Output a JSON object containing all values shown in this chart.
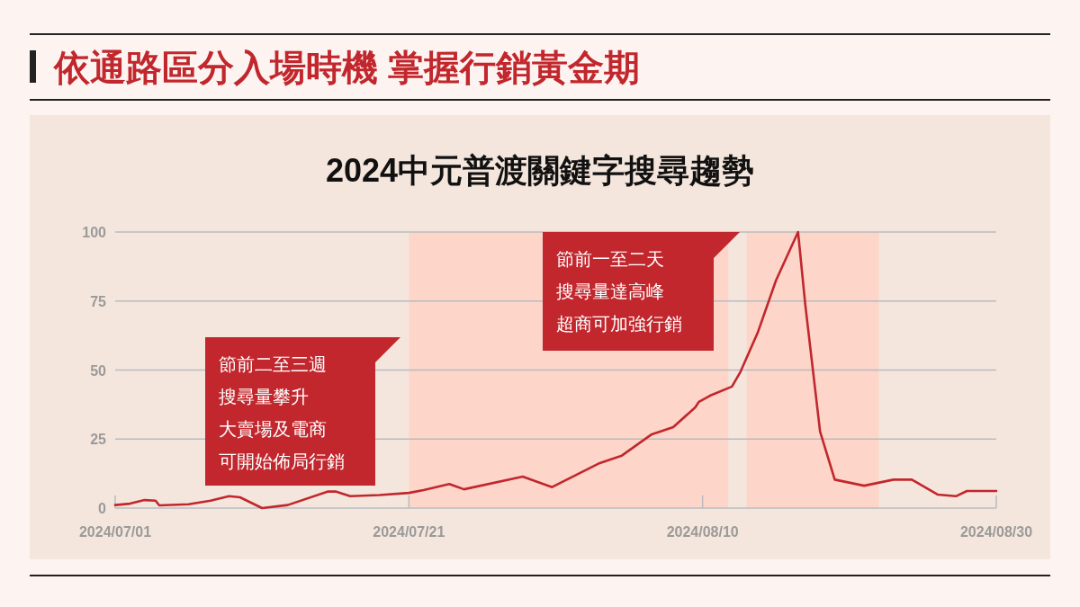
{
  "chart_data": {
    "type": "line",
    "title": "依通路區分入場時機 掌握行銷黃金期",
    "subtitle": "2024中元普渡關鍵字搜尋趨勢",
    "x": [
      "2024-07-01",
      "2024-07-02",
      "2024-07-03",
      "2024-07-03T18:00",
      "2024-07-04",
      "2024-07-06",
      "2024-07-07T12:00",
      "2024-07-08T18:00",
      "2024-07-09T12:00",
      "2024-07-11",
      "2024-07-12T18:00",
      "2024-07-15T12:00",
      "2024-07-16",
      "2024-07-17",
      "2024-07-19",
      "2024-07-21",
      "2024-07-22",
      "2024-07-23T18:00",
      "2024-07-24T18:00",
      "2024-07-28T18:00",
      "2024-07-30T18:00",
      "2024-08-03",
      "2024-08-04T12:00",
      "2024-08-06T12:00",
      "2024-08-08",
      "2024-08-09T12:00",
      "2024-08-09T18:00",
      "2024-08-10T12:00",
      "2024-08-12",
      "2024-08-12T14:00",
      "2024-08-13T18:00",
      "2024-08-15",
      "2024-08-16T12:00",
      "2024-08-17",
      "2024-08-18",
      "2024-08-19",
      "2024-08-21",
      "2024-08-23",
      "2024-08-24T06:00",
      "2024-08-26",
      "2024-08-27T06:00",
      "2024-08-28",
      "2024-08-30"
    ],
    "series": [
      {
        "color": "#c1272d",
        "values": [
          1.1,
          1.6,
          2.9,
          2.7,
          1.0,
          1.4,
          2.7,
          4.3,
          3.9,
          0,
          1.1,
          6.0,
          6.0,
          4.3,
          4.7,
          5.5,
          6.5,
          8.7,
          6.8,
          11.4,
          7.6,
          16.3,
          19,
          26.6,
          29.3,
          36.5,
          38.5,
          40.7,
          44,
          49.4,
          63.5,
          82.5,
          100,
          73.3,
          27.7,
          10.3,
          8.1,
          10.3,
          10.3,
          4.9,
          4.3,
          6.2,
          6.2
        ]
      }
    ],
    "xlim": [
      "2024-07-01",
      "2024-08-30"
    ],
    "xticks": [
      {
        "value": "2024-07-01",
        "label": "2024/07/01"
      },
      {
        "value": "2024-07-21",
        "label": "2024/07/21"
      },
      {
        "value": "2024-08-10",
        "label": "2024/08/10"
      },
      {
        "value": "2024-08-30",
        "label": "2024/08/30"
      }
    ],
    "ylim": [
      0,
      100
    ],
    "yticks": [
      0,
      25,
      50,
      75,
      100
    ],
    "grid": "y",
    "bands": [
      {
        "axis": "x",
        "from": "2024-07-21",
        "to": "2024-08-11T18:00",
        "color": "#fdd5c9"
      },
      {
        "axis": "x",
        "from": "2024-08-13",
        "to": "2024-08-22",
        "color": "#fdd5c9"
      }
    ],
    "annotations": [
      "節前二至三週",
      "搜尋量攀升",
      "大賣場及電商",
      "可開始佈局行銷",
      "節前一至二天",
      "搜尋量達高峰",
      "超商可加強行銷"
    ]
  }
}
